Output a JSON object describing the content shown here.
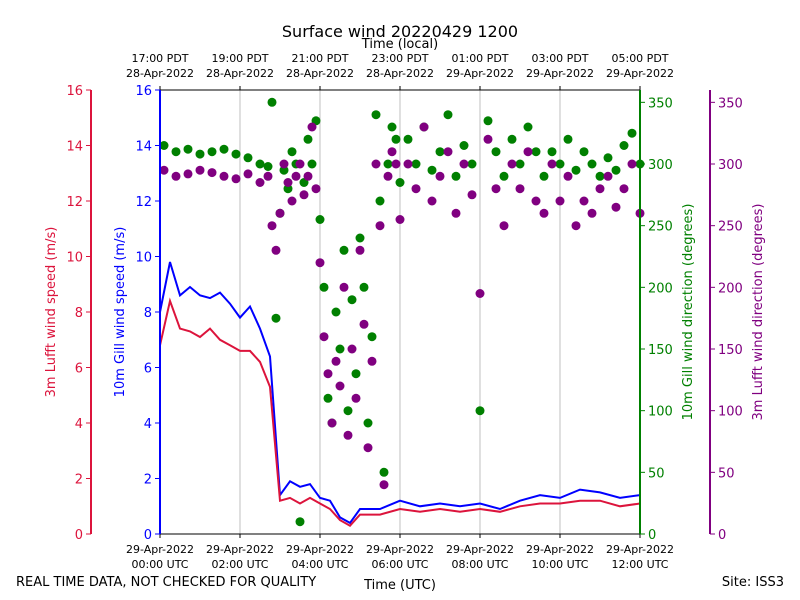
{
  "chart_data": {
    "type": "line",
    "title": "Surface wind 20220429 1200",
    "top_axis_label": "Time (local)",
    "xlabel": "Time (UTC)",
    "footer_left": "REAL TIME DATA, NOT CHECKED FOR QUALITY",
    "footer_right": "Site: ISS3",
    "x_range_hours_utc": [
      0,
      12
    ],
    "grid": "vertical",
    "bottom_ticks": [
      {
        "hour": 0,
        "line1": "29-Apr-2022",
        "line2": "00:00 UTC"
      },
      {
        "hour": 2,
        "line1": "29-Apr-2022",
        "line2": "02:00 UTC"
      },
      {
        "hour": 4,
        "line1": "29-Apr-2022",
        "line2": "04:00 UTC"
      },
      {
        "hour": 6,
        "line1": "29-Apr-2022",
        "line2": "06:00 UTC"
      },
      {
        "hour": 8,
        "line1": "29-Apr-2022",
        "line2": "08:00 UTC"
      },
      {
        "hour": 10,
        "line1": "29-Apr-2022",
        "line2": "10:00 UTC"
      },
      {
        "hour": 12,
        "line1": "29-Apr-2022",
        "line2": "12:00 UTC"
      }
    ],
    "top_ticks": [
      {
        "hour": 0,
        "line1": "17:00 PDT",
        "line2": "28-Apr-2022"
      },
      {
        "hour": 2,
        "line1": "19:00 PDT",
        "line2": "28-Apr-2022"
      },
      {
        "hour": 4,
        "line1": "21:00 PDT",
        "line2": "28-Apr-2022"
      },
      {
        "hour": 6,
        "line1": "23:00 PDT",
        "line2": "28-Apr-2022"
      },
      {
        "hour": 8,
        "line1": "01:00 PDT",
        "line2": "29-Apr-2022"
      },
      {
        "hour": 10,
        "line1": "03:00 PDT",
        "line2": "29-Apr-2022"
      },
      {
        "hour": 12,
        "line1": "05:00 PDT",
        "line2": "29-Apr-2022"
      }
    ],
    "axes": {
      "lufft_speed": {
        "label": "3m Lufft wind speed (m/s)",
        "color": "#dc143c",
        "ylim": [
          0,
          16
        ],
        "ticks": [
          0,
          2,
          4,
          6,
          8,
          10,
          12,
          14,
          16
        ]
      },
      "gill_speed": {
        "label": "10m Gill wind speed (m/s)",
        "color": "#0000ff",
        "ylim": [
          0,
          16
        ],
        "ticks": [
          0,
          2,
          4,
          6,
          8,
          10,
          12,
          14,
          16
        ]
      },
      "gill_dir": {
        "label": "10m Gill wind direction (degrees)",
        "color": "#008000",
        "ylim": [
          0,
          360
        ],
        "ticks": [
          0,
          50,
          100,
          150,
          200,
          250,
          300,
          350
        ]
      },
      "lufft_dir": {
        "label": "3m Lufft wind direction (degrees)",
        "color": "#800080",
        "ylim": [
          0,
          360
        ],
        "ticks": [
          0,
          50,
          100,
          150,
          200,
          250,
          300,
          350
        ]
      }
    },
    "series": [
      {
        "name": "10m Gill wind speed",
        "kind": "line",
        "axis": "gill_speed",
        "color": "#0000ff",
        "hours": [
          0,
          0.25,
          0.5,
          0.75,
          1,
          1.25,
          1.5,
          1.75,
          2,
          2.25,
          2.5,
          2.75,
          3,
          3.25,
          3.5,
          3.75,
          4,
          4.25,
          4.5,
          4.75,
          5,
          5.5,
          6,
          6.5,
          7,
          7.5,
          8,
          8.5,
          9,
          9.5,
          10,
          10.5,
          11,
          11.5,
          12
        ],
        "values": [
          8.0,
          9.8,
          8.6,
          8.9,
          8.6,
          8.5,
          8.7,
          8.3,
          7.8,
          8.2,
          7.4,
          6.4,
          1.4,
          1.9,
          1.7,
          1.8,
          1.3,
          1.2,
          0.6,
          0.4,
          0.9,
          0.9,
          1.2,
          1.0,
          1.1,
          1.0,
          1.1,
          0.9,
          1.2,
          1.4,
          1.3,
          1.6,
          1.5,
          1.3,
          1.4
        ]
      },
      {
        "name": "3m Lufft wind speed",
        "kind": "line",
        "axis": "lufft_speed",
        "color": "#dc143c",
        "hours": [
          0,
          0.25,
          0.5,
          0.75,
          1,
          1.25,
          1.5,
          1.75,
          2,
          2.25,
          2.5,
          2.75,
          3,
          3.25,
          3.5,
          3.75,
          4,
          4.25,
          4.5,
          4.75,
          5,
          5.5,
          6,
          6.5,
          7,
          7.5,
          8,
          8.5,
          9,
          9.5,
          10,
          10.5,
          11,
          11.5,
          12
        ],
        "values": [
          6.8,
          8.4,
          7.4,
          7.3,
          7.1,
          7.4,
          7.0,
          6.8,
          6.6,
          6.6,
          6.2,
          5.3,
          1.2,
          1.3,
          1.1,
          1.3,
          1.1,
          0.9,
          0.5,
          0.3,
          0.7,
          0.7,
          0.9,
          0.8,
          0.9,
          0.8,
          0.9,
          0.8,
          1.0,
          1.1,
          1.1,
          1.2,
          1.2,
          1.0,
          1.1
        ]
      },
      {
        "name": "10m Gill wind direction",
        "kind": "scatter",
        "axis": "gill_dir",
        "color": "#008000",
        "points": [
          [
            0.1,
            315
          ],
          [
            0.4,
            310
          ],
          [
            0.7,
            312
          ],
          [
            1.0,
            308
          ],
          [
            1.3,
            310
          ],
          [
            1.6,
            312
          ],
          [
            1.9,
            308
          ],
          [
            2.2,
            305
          ],
          [
            2.5,
            300
          ],
          [
            2.7,
            298
          ],
          [
            2.8,
            350
          ],
          [
            2.9,
            175
          ],
          [
            3.0,
            260
          ],
          [
            3.1,
            295
          ],
          [
            3.2,
            280
          ],
          [
            3.3,
            310
          ],
          [
            3.4,
            300
          ],
          [
            3.5,
            10
          ],
          [
            3.6,
            285
          ],
          [
            3.7,
            320
          ],
          [
            3.8,
            300
          ],
          [
            3.9,
            335
          ],
          [
            4.0,
            255
          ],
          [
            4.1,
            200
          ],
          [
            4.2,
            110
          ],
          [
            4.3,
            90
          ],
          [
            4.4,
            180
          ],
          [
            4.5,
            150
          ],
          [
            4.6,
            230
          ],
          [
            4.7,
            100
          ],
          [
            4.8,
            190
          ],
          [
            4.9,
            130
          ],
          [
            5.0,
            240
          ],
          [
            5.1,
            200
          ],
          [
            5.2,
            90
          ],
          [
            5.3,
            160
          ],
          [
            5.4,
            340
          ],
          [
            5.5,
            270
          ],
          [
            5.6,
            50
          ],
          [
            5.7,
            300
          ],
          [
            5.8,
            330
          ],
          [
            5.9,
            320
          ],
          [
            6.0,
            285
          ],
          [
            6.2,
            320
          ],
          [
            6.4,
            300
          ],
          [
            6.6,
            330
          ],
          [
            6.8,
            295
          ],
          [
            7.0,
            310
          ],
          [
            7.2,
            340
          ],
          [
            7.4,
            290
          ],
          [
            7.6,
            315
          ],
          [
            7.8,
            300
          ],
          [
            8.0,
            100
          ],
          [
            8.2,
            335
          ],
          [
            8.4,
            310
          ],
          [
            8.6,
            290
          ],
          [
            8.8,
            320
          ],
          [
            9.0,
            300
          ],
          [
            9.2,
            330
          ],
          [
            9.4,
            310
          ],
          [
            9.6,
            290
          ],
          [
            9.8,
            310
          ],
          [
            10.0,
            300
          ],
          [
            10.2,
            320
          ],
          [
            10.4,
            295
          ],
          [
            10.6,
            310
          ],
          [
            10.8,
            300
          ],
          [
            11.0,
            290
          ],
          [
            11.2,
            305
          ],
          [
            11.4,
            295
          ],
          [
            11.6,
            315
          ],
          [
            11.8,
            325
          ],
          [
            12.0,
            300
          ]
        ]
      },
      {
        "name": "3m Lufft wind direction",
        "kind": "scatter",
        "axis": "lufft_dir",
        "color": "#800080",
        "points": [
          [
            0.1,
            295
          ],
          [
            0.4,
            290
          ],
          [
            0.7,
            292
          ],
          [
            1.0,
            295
          ],
          [
            1.3,
            293
          ],
          [
            1.6,
            290
          ],
          [
            1.9,
            288
          ],
          [
            2.2,
            292
          ],
          [
            2.5,
            285
          ],
          [
            2.7,
            290
          ],
          [
            2.8,
            250
          ],
          [
            2.9,
            230
          ],
          [
            3.0,
            260
          ],
          [
            3.1,
            300
          ],
          [
            3.2,
            285
          ],
          [
            3.3,
            270
          ],
          [
            3.4,
            290
          ],
          [
            3.5,
            300
          ],
          [
            3.6,
            275
          ],
          [
            3.7,
            290
          ],
          [
            3.8,
            330
          ],
          [
            3.9,
            280
          ],
          [
            4.0,
            220
          ],
          [
            4.1,
            160
          ],
          [
            4.2,
            130
          ],
          [
            4.3,
            90
          ],
          [
            4.4,
            140
          ],
          [
            4.5,
            120
          ],
          [
            4.6,
            200
          ],
          [
            4.7,
            80
          ],
          [
            4.8,
            150
          ],
          [
            4.9,
            110
          ],
          [
            5.0,
            230
          ],
          [
            5.1,
            170
          ],
          [
            5.2,
            70
          ],
          [
            5.3,
            140
          ],
          [
            5.4,
            300
          ],
          [
            5.5,
            250
          ],
          [
            5.6,
            40
          ],
          [
            5.7,
            290
          ],
          [
            5.8,
            310
          ],
          [
            5.9,
            300
          ],
          [
            6.0,
            255
          ],
          [
            6.2,
            300
          ],
          [
            6.4,
            280
          ],
          [
            6.6,
            330
          ],
          [
            6.8,
            270
          ],
          [
            7.0,
            290
          ],
          [
            7.2,
            310
          ],
          [
            7.4,
            260
          ],
          [
            7.6,
            300
          ],
          [
            7.8,
            275
          ],
          [
            8.0,
            195
          ],
          [
            8.2,
            320
          ],
          [
            8.4,
            280
          ],
          [
            8.6,
            250
          ],
          [
            8.8,
            300
          ],
          [
            9.0,
            280
          ],
          [
            9.2,
            310
          ],
          [
            9.4,
            270
          ],
          [
            9.6,
            260
          ],
          [
            9.8,
            300
          ],
          [
            10.0,
            270
          ],
          [
            10.2,
            290
          ],
          [
            10.4,
            250
          ],
          [
            10.6,
            270
          ],
          [
            10.8,
            260
          ],
          [
            11.0,
            280
          ],
          [
            11.2,
            290
          ],
          [
            11.4,
            265
          ],
          [
            11.6,
            280
          ],
          [
            11.8,
            300
          ],
          [
            12.0,
            260
          ]
        ]
      }
    ]
  }
}
